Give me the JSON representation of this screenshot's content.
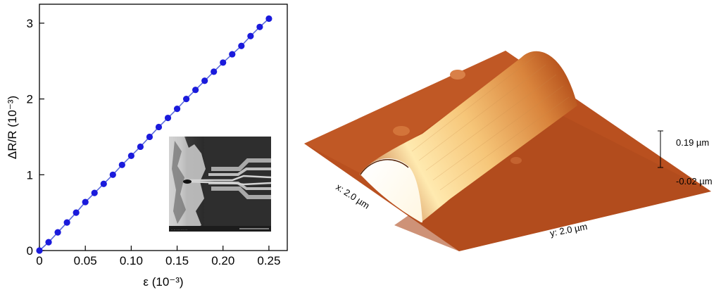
{
  "chart_data": [
    {
      "type": "scatter",
      "xlabel": "ε (10⁻³)",
      "ylabel": "ΔR/R (10⁻³)",
      "xlim": [
        0,
        0.27
      ],
      "ylim": [
        0,
        3.25
      ],
      "xticks": [
        "0",
        "0.05",
        "0.10",
        "0.15",
        "0.20",
        "0.25"
      ],
      "yticks": [
        "0",
        "1",
        "2",
        "3"
      ],
      "grid": false,
      "marker_color": "#1a1adc",
      "line_color": "#5b6bdc",
      "series": [
        {
          "x": [
            0.0,
            0.01,
            0.02,
            0.03,
            0.04,
            0.05,
            0.06,
            0.07,
            0.08,
            0.09,
            0.1,
            0.11,
            0.12,
            0.13,
            0.14,
            0.15,
            0.16,
            0.17,
            0.18,
            0.19,
            0.2,
            0.21,
            0.22,
            0.23,
            0.24,
            0.25
          ],
          "y": [
            0.0,
            0.11,
            0.24,
            0.37,
            0.5,
            0.64,
            0.76,
            0.88,
            1.0,
            1.13,
            1.25,
            1.37,
            1.5,
            1.63,
            1.75,
            1.87,
            2.0,
            2.12,
            2.24,
            2.36,
            2.48,
            2.59,
            2.7,
            2.83,
            2.95,
            3.06
          ]
        }
      ],
      "inset": "sem-micrograph"
    },
    {
      "type": "surface",
      "labels": {
        "x_axis": "x: 2.0 µm",
        "y_axis": "y: 2.0 µm",
        "z_max": "0.19 µm",
        "z_min": "-0.02 µm"
      },
      "colors": {
        "low": "#a8461e",
        "mid": "#e59a52",
        "high": "#fff2b8"
      }
    }
  ]
}
